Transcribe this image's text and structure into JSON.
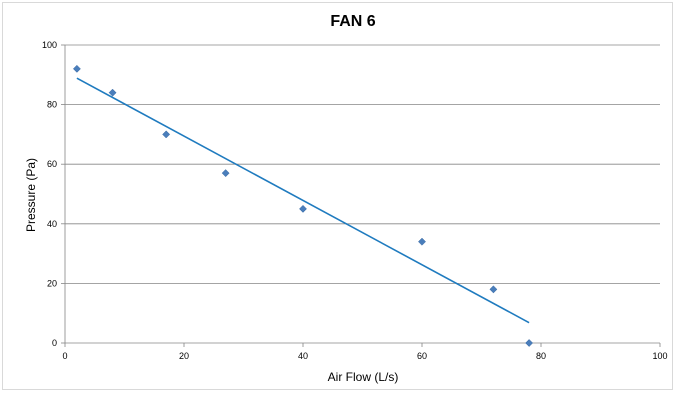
{
  "chart_data": {
    "type": "scatter",
    "title": "FAN 6",
    "xlabel": "Air Flow (L/s)",
    "ylabel": "Pressure (Pa)",
    "xlim": [
      0,
      100
    ],
    "ylim": [
      0,
      100
    ],
    "x_ticks": [
      "0",
      "20",
      "40",
      "60",
      "80",
      "100"
    ],
    "y_ticks": [
      "0",
      "20",
      "40",
      "60",
      "80",
      "100"
    ],
    "grid": "horizontal",
    "legend": "none",
    "marker": "diamond",
    "series_color": "#4a7ebb",
    "trendline_color": "#1f7bbf",
    "points": [
      {
        "x": 2,
        "y": 92
      },
      {
        "x": 8,
        "y": 84
      },
      {
        "x": 17,
        "y": 70
      },
      {
        "x": 27,
        "y": 57
      },
      {
        "x": 40,
        "y": 45
      },
      {
        "x": 60,
        "y": 34
      },
      {
        "x": 72,
        "y": 18
      },
      {
        "x": 78,
        "y": 0
      }
    ],
    "trendline": {
      "type": "linear",
      "x_start": 2,
      "x_end": 78
    }
  }
}
